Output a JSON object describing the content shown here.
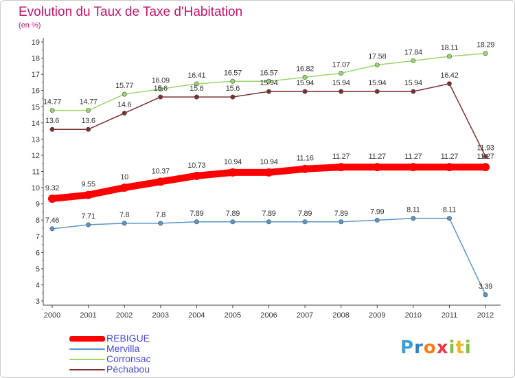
{
  "title": "Evolution du Taux de Taxe d'Habitation",
  "subtitle": "(en %)",
  "logo": {
    "letters": [
      "P",
      "r",
      "o",
      "x",
      "i",
      "t",
      "i"
    ],
    "colors": [
      "#3aa0d8",
      "#2e7fc0",
      "#f07f1d",
      "#e8394a",
      "#7fc241",
      "#f0b323",
      "#7fc241"
    ]
  },
  "chart_data": {
    "type": "line",
    "x": [
      "2000",
      "2001",
      "2002",
      "2003",
      "2004",
      "2005",
      "2006",
      "2007",
      "2008",
      "2009",
      "2010",
      "2011",
      "2012"
    ],
    "ylim": [
      3,
      19
    ],
    "yticks": [
      3,
      4,
      5,
      6,
      7,
      8,
      9,
      10,
      11,
      12,
      13,
      14,
      15,
      16,
      17,
      18,
      19
    ],
    "grid": false,
    "legend_position": "bottom-left",
    "series": [
      {
        "name": "REBIGUE",
        "color": "#ff0000",
        "values": [
          9.32,
          9.55,
          10,
          10.37,
          10.73,
          10.94,
          10.94,
          11.16,
          11.27,
          11.27,
          11.27,
          11.27,
          11.27
        ],
        "labels": [
          "9.32",
          "9.55",
          "10",
          "10.37",
          "10.73",
          "10.94",
          "10.94",
          "11.16",
          "11.27",
          "11.27",
          "11.27",
          "11.27",
          "11.27"
        ]
      },
      {
        "name": "Mervilla",
        "color": "#5b95c6",
        "values": [
          7.46,
          7.71,
          7.8,
          7.8,
          7.89,
          7.89,
          7.89,
          7.89,
          7.89,
          7.99,
          8.11,
          8.11,
          3.39
        ],
        "labels": [
          "7.46",
          "7.71",
          "7.8",
          "7.8",
          "7.89",
          "7.89",
          "7.89",
          "7.89",
          "7.89",
          "7.99",
          "8.11",
          "8.11",
          "3.39"
        ]
      },
      {
        "name": "Corronsac",
        "color": "#99d56e",
        "values": [
          14.77,
          14.77,
          15.77,
          16.09,
          16.41,
          16.57,
          16.57,
          16.82,
          17.07,
          17.58,
          17.84,
          18.11,
          18.29
        ],
        "labels": [
          "14.77",
          "14.77",
          "15.77",
          "16.09",
          "16.41",
          "16.57",
          "16.57",
          "16.82",
          "17.07",
          "17.58",
          "17.84",
          "18.11",
          "18.29"
        ]
      },
      {
        "name": "Péchabou",
        "color": "#7a3030",
        "values": [
          13.6,
          13.6,
          14.6,
          15.6,
          15.6,
          15.6,
          15.94,
          15.94,
          15.94,
          15.94,
          15.94,
          16.42,
          11.93
        ],
        "labels": [
          "13.6",
          "13.6",
          "14.6",
          "15.6",
          "15.6",
          "15.6",
          "15.94",
          "15.94",
          "15.94",
          "15.94",
          "15.94",
          "16.42",
          "11.93"
        ]
      }
    ]
  }
}
